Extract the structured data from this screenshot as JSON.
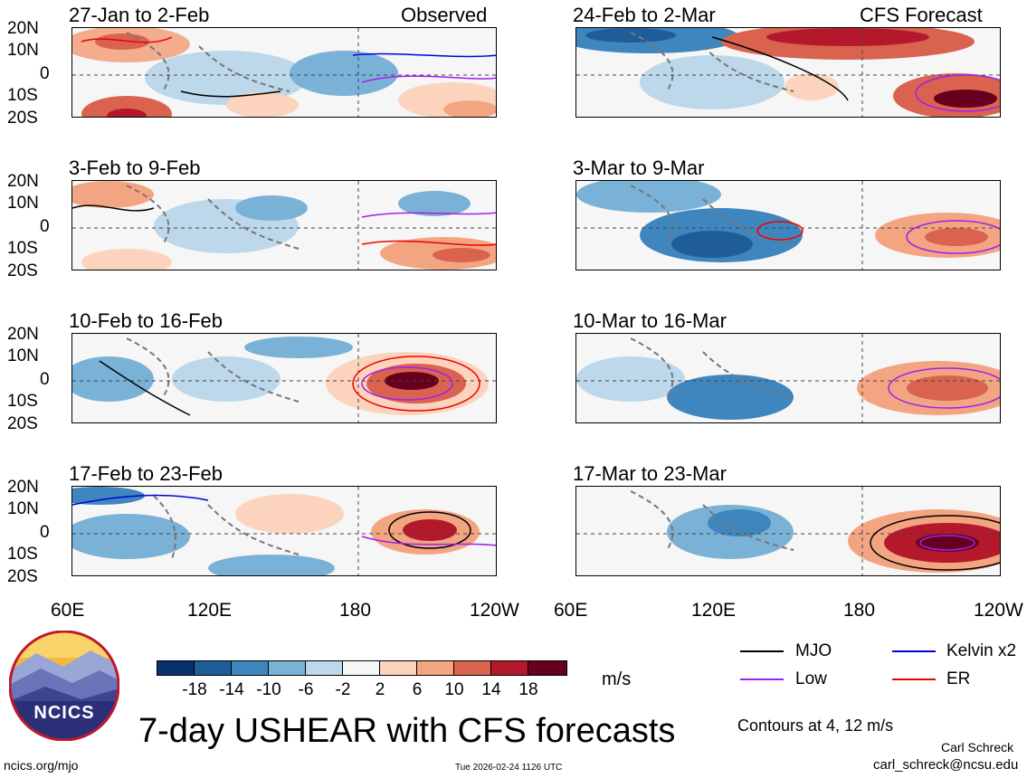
{
  "headers": {
    "left": "Observed",
    "right": "CFS Forecast"
  },
  "panels": {
    "left": [
      {
        "period": "27-Jan to 2-Feb"
      },
      {
        "period": "3-Feb to 9-Feb"
      },
      {
        "period": "10-Feb to 16-Feb"
      },
      {
        "period": "17-Feb to 23-Feb"
      }
    ],
    "right": [
      {
        "period": "24-Feb to 2-Mar"
      },
      {
        "period": "3-Mar to 9-Mar"
      },
      {
        "period": "10-Mar to 16-Mar"
      },
      {
        "period": "17-Mar to 23-Mar"
      }
    ]
  },
  "y_labels": [
    "20N",
    "10N",
    "0",
    "10S",
    "20S"
  ],
  "x_labels": [
    "60E",
    "120E",
    "180",
    "120W"
  ],
  "colorbar": {
    "ticks": [
      "-18",
      "-14",
      "-10",
      "-6",
      "-2",
      "2",
      "6",
      "10",
      "14",
      "18"
    ],
    "colors": [
      "#08306b",
      "#1f5d99",
      "#3f86bf",
      "#7ab1d6",
      "#bcd8ea",
      "#f7f7f7",
      "#fcd4bd",
      "#f3a582",
      "#d9634f",
      "#b3192b",
      "#67001f"
    ],
    "unit": "m/s"
  },
  "legend": [
    {
      "label": "MJO",
      "color": "#000000"
    },
    {
      "label": "Kelvin x2",
      "color": "#0000dd"
    },
    {
      "label": "Low",
      "color": "#a020f0"
    },
    {
      "label": "ER",
      "color": "#ee0000"
    }
  ],
  "contours_note": "Contours at 4, 12 m/s",
  "title": "7-day USHEAR with CFS forecasts",
  "logo_text": "NCICS",
  "footer": {
    "url": "ncics.org/mjo",
    "timestamp": "Tue 2026-02-24 1126 UTC",
    "author": "Carl Schreck",
    "email": "carl_schreck@ncsu.edu"
  }
}
